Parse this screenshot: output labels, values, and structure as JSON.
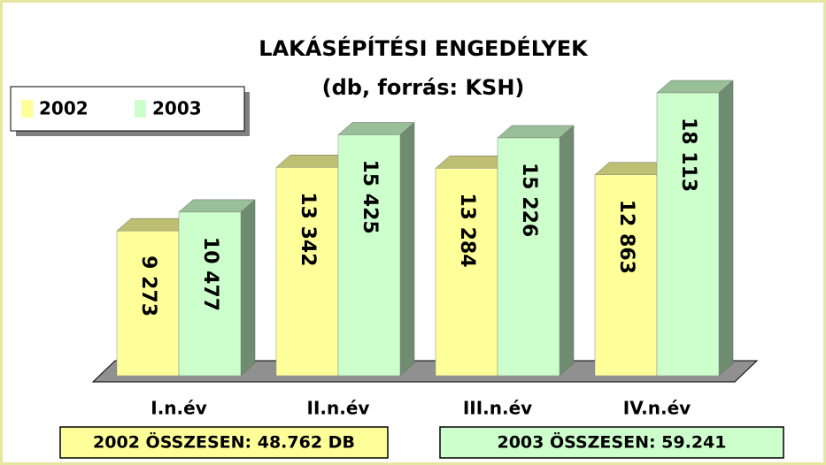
{
  "chart_data": {
    "type": "bar3d",
    "title": "LAKÁSÉPÍTÉSI ENGEDÉLYEK",
    "subtitle": "(db, forrás: KSH)",
    "categories": [
      "I.n.év",
      "II.n.év",
      "III.n.év",
      "IV.n.év"
    ],
    "series": [
      {
        "name": "2002",
        "color": "#ffff99",
        "values": [
          9273,
          13342,
          13284,
          12863
        ],
        "value_labels": [
          "9 273",
          "13 342",
          "13 284",
          "12 863"
        ]
      },
      {
        "name": "2003",
        "color": "#ccffcc",
        "values": [
          10477,
          15425,
          15226,
          18113
        ],
        "value_labels": [
          "10 477",
          "15 425",
          "15 226",
          "18 113"
        ]
      }
    ],
    "legend": "top-left",
    "annotations": [
      "2002 ÖSSZESEN: 48.762 DB",
      "2003 ÖSSZESEN: 59.241"
    ]
  }
}
